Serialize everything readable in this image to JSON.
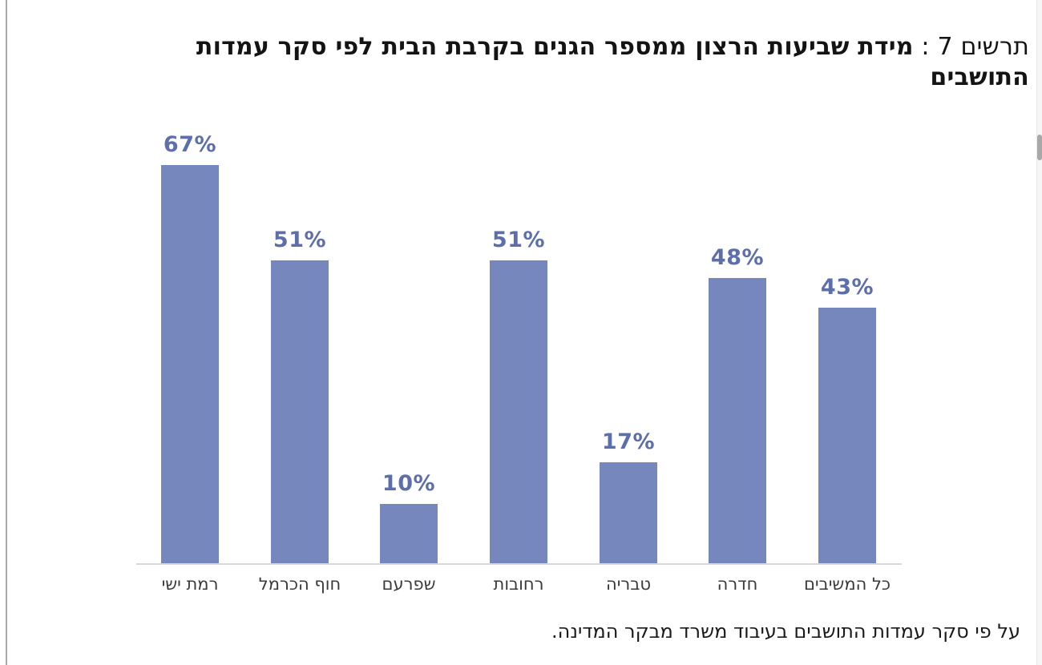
{
  "title": {
    "prefix": "תרשים 7 : ",
    "main": "מידת שביעות הרצון ממספר הגנים בקרבת הבית לפי סקר עמדות התושבים"
  },
  "caption": "על פי סקר עמדות התושבים בעיבוד משרד מבקר המדינה.",
  "chart_data": {
    "type": "bar",
    "direction": "rtl",
    "title": "תרשים 7 : מידת שביעות הרצון ממספר הגנים בקרבת הבית לפי סקר עמדות התושבים",
    "categories": [
      "רמת ישי",
      "חוף הכרמל",
      "שפרעם",
      "רחובות",
      "טבריה",
      "חדרה",
      "כל המשיבים"
    ],
    "values": [
      67,
      51,
      10,
      51,
      17,
      48,
      43
    ],
    "value_labels": [
      "67%",
      "51%",
      "10%",
      "51%",
      "17%",
      "48%",
      "43%"
    ],
    "ylabel": "",
    "xlabel": "",
    "ylim": [
      0,
      70
    ],
    "grid": false,
    "legend": false,
    "bar_color": "#7687BD",
    "value_label_color": "#5C6FAA",
    "category_label_color": "#3A3A3A",
    "axis_line_color": "#D9D9D9"
  },
  "scrollbar": {
    "track_color": "#F6F6F6",
    "thumb_color": "#A8A8A8"
  }
}
